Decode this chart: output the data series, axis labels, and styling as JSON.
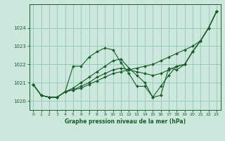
{
  "title": "Graphe pression niveau de la mer (hPa)",
  "bg_color": "#cce8dd",
  "grid_color": "#99ccbb",
  "line_color": "#1a5c2a",
  "marker_color": "#1a5c2a",
  "xlim": [
    -0.5,
    23.5
  ],
  "ylim": [
    1019.5,
    1025.3
  ],
  "yticks": [
    1020,
    1021,
    1022,
    1023,
    1024
  ],
  "xticks": [
    0,
    1,
    2,
    3,
    4,
    5,
    6,
    7,
    8,
    9,
    10,
    11,
    12,
    13,
    14,
    15,
    16,
    17,
    18,
    19,
    20,
    21,
    22,
    23
  ],
  "series": [
    [
      1020.9,
      1020.3,
      1020.2,
      1020.2,
      1020.5,
      1021.9,
      1021.9,
      1022.4,
      1022.7,
      1022.9,
      1022.8,
      1022.1,
      1021.5,
      1020.8,
      1020.8,
      1020.2,
      1020.3,
      1021.8,
      1021.7,
      1022.0,
      1022.7,
      1023.3,
      1024.0,
      1024.9
    ],
    [
      1020.9,
      1020.3,
      1020.2,
      1020.2,
      1020.5,
      1020.7,
      1021.0,
      1021.3,
      1021.6,
      1021.9,
      1022.2,
      1022.3,
      1021.8,
      1021.4,
      1021.0,
      1020.2,
      1020.8,
      1021.4,
      1021.9,
      1022.0,
      1022.7,
      1023.3,
      1024.0,
      1024.9
    ],
    [
      1020.9,
      1020.3,
      1020.2,
      1020.2,
      1020.5,
      1020.6,
      1020.8,
      1021.0,
      1021.3,
      1021.5,
      1021.7,
      1021.8,
      1021.7,
      1021.6,
      1021.5,
      1021.4,
      1021.5,
      1021.7,
      1021.9,
      1022.0,
      1022.7,
      1023.3,
      1024.0,
      1024.9
    ],
    [
      1020.9,
      1020.3,
      1020.2,
      1020.2,
      1020.5,
      1020.6,
      1020.7,
      1020.9,
      1021.1,
      1021.3,
      1021.5,
      1021.6,
      1021.7,
      1021.8,
      1021.9,
      1022.0,
      1022.2,
      1022.4,
      1022.6,
      1022.8,
      1023.0,
      1023.3,
      1024.0,
      1024.9
    ]
  ]
}
